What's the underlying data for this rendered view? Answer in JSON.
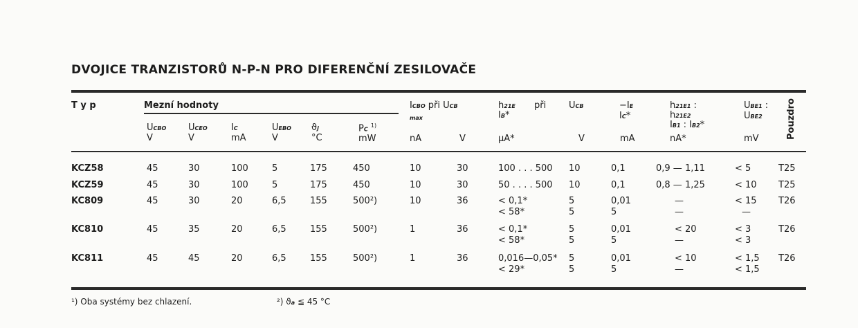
{
  "title": "DVOJICE TRANZISTORŮ N-P-N PRO DIFERENČNÍ ZESILOVAČE",
  "header": {
    "typ": "T y p",
    "mezni": "Mezní hodnoty",
    "ucbo": "U",
    "ucbo_sub": "CBO",
    "ucbo_unit": "V",
    "uceo": "U",
    "uceo_sub": "CEO",
    "uceo_unit": "V",
    "ic": "I",
    "ic_sub": "C",
    "ic_unit": "mA",
    "uebo": "U",
    "uebo_sub": "EBO",
    "uebo_unit": "V",
    "tj": "ϑ",
    "tj_sub": "j",
    "tj_unit": "°C",
    "pc": "P",
    "pc_sub": "C",
    "pc_note": "1)",
    "pc_unit": "mW",
    "icbo": "I",
    "icbo_sub": "CBO",
    "icbo_pri": "při U",
    "icbo_pri_sub": "CB",
    "icbo_max": "max",
    "icbo_unit": "nA",
    "ucb1_unit": "V",
    "h21e": "h",
    "h21e_sub": "21E",
    "h21e_pri": "při",
    "h21e_ib": "I",
    "h21e_ib_sub": "B",
    "h21e_ib_star": "*",
    "h21e_unit": "μA*",
    "ucb": "U",
    "ucb_sub": "CB",
    "ucb_unit": "V",
    "ie": "−I",
    "ie_sub": "E",
    "ie_ic": "I",
    "ie_ic_sub": "C",
    "ie_ic_star": "*",
    "ie_unit": "mA",
    "hratio_1": "h",
    "hratio_1_sub": "21E1",
    "hratio_1_colon": " :",
    "hratio_2": "h",
    "hratio_2_sub": "21E2",
    "hratio_3": "I",
    "hratio_3_sub": "B1",
    "hratio_3_mid": " : I",
    "hratio_3_sub2": "B2",
    "hratio_3_star": "*",
    "hratio_unit": "nA*",
    "ube_1": "U",
    "ube_1_sub": "BE1",
    "ube_1_colon": " :",
    "ube_2": "U",
    "ube_2_sub": "BE2",
    "ube_unit": "mV",
    "pouzdro": "Pouzdro"
  },
  "rows": [
    {
      "typ": "KCZ58",
      "cells": [
        "45",
        "30",
        "100",
        "5",
        "175",
        "450",
        "10",
        "30",
        [
          "100 . . . 500"
        ],
        [
          "10"
        ],
        [
          "0,1"
        ],
        [
          "0,9 — 1,11"
        ],
        [
          "< 5"
        ],
        "T25"
      ]
    },
    {
      "typ": "KCZ59",
      "cells": [
        "45",
        "30",
        "100",
        "5",
        "175",
        "450",
        "10",
        "30",
        [
          "50 . . . . 500"
        ],
        [
          "10"
        ],
        [
          "0,1"
        ],
        [
          "0,8 — 1,25"
        ],
        [
          "< 10"
        ],
        "T25"
      ]
    },
    {
      "typ": "KC809",
      "cells": [
        "45",
        "30",
        "20",
        "6,5",
        "155",
        "500²)",
        "10",
        "36",
        [
          "< 0,1*",
          "< 58*"
        ],
        [
          "5",
          "5"
        ],
        [
          "0,01",
          "5"
        ],
        [
          "—",
          "—"
        ],
        [
          "< 15",
          "—"
        ],
        "T26"
      ]
    },
    {
      "typ": "KC810",
      "cells": [
        "45",
        "35",
        "20",
        "6,5",
        "155",
        "500²)",
        "1",
        "36",
        [
          "< 0,1*",
          "< 58*"
        ],
        [
          "5",
          "5"
        ],
        [
          "0,01",
          "5"
        ],
        [
          "< 20",
          "—"
        ],
        [
          "< 3",
          "< 3"
        ],
        "T26"
      ]
    },
    {
      "typ": "KC811",
      "cells": [
        "45",
        "45",
        "20",
        "6,5",
        "155",
        "500²)",
        "1",
        "36",
        [
          "0,016—0,05*",
          "< 29*"
        ],
        [
          "5",
          "5"
        ],
        [
          "0,01",
          "5"
        ],
        [
          "< 10",
          "—"
        ],
        [
          "< 1,5",
          "< 1,5"
        ],
        "T26"
      ]
    }
  ],
  "footnotes": {
    "note1": "¹) Oba systémy bez chlazení.",
    "note2_prefix": "²) ϑ",
    "note2_sub": "a",
    "note2_rest": " ≦ 45 °C"
  }
}
